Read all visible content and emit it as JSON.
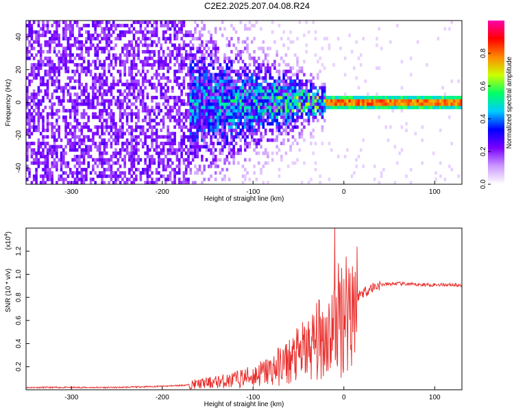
{
  "title": "C2E2.2025.207.04.08.R24",
  "chart_data": [
    {
      "type": "heatmap",
      "xlabel": "Height of straight line (km)",
      "ylabel": "Frequency (Hz)",
      "xlim": [
        -350,
        130
      ],
      "ylim": [
        -50,
        50
      ],
      "xticks": [
        -300,
        -200,
        -100,
        0,
        100
      ],
      "yticks": [
        -40,
        -20,
        0,
        20,
        40
      ],
      "colorbar": {
        "label": "Normalized spectral amplitude",
        "range": [
          0.0,
          1.0
        ],
        "ticks": [
          "0.0",
          "0.2",
          "0.4",
          "0.6",
          "0.8"
        ],
        "colors": [
          "#ffffff",
          "#cc99ff",
          "#7a00ff",
          "#0000ff",
          "#00ccff",
          "#00ff66",
          "#ccff00",
          "#ff8800",
          "#ff0000",
          "#ff00aa"
        ]
      },
      "regions": [
        {
          "x_range": [
            -350,
            -170
          ],
          "description": "broadband noise",
          "amplitude": 0.2
        },
        {
          "x_range": [
            -170,
            -20
          ],
          "description": "narrowing signal near 0 Hz",
          "amplitude": 0.5
        },
        {
          "x_range": [
            -20,
            130
          ],
          "description": "strong tone at 0 Hz",
          "amplitude": 0.95
        }
      ]
    },
    {
      "type": "line",
      "xlabel": "Height of straight line (km)",
      "ylabel": "SNR (10 * v/v)",
      "yscale_label": "(x10",
      "yscale_exp": "4",
      "xlim": [
        -350,
        130
      ],
      "ylim": [
        0,
        1.4
      ],
      "xticks": [
        -300,
        -200,
        -100,
        0,
        100
      ],
      "yticks": [
        0.2,
        0.4,
        0.6,
        0.8,
        1.0,
        1.2
      ],
      "ytick_labels": [
        "0.2",
        "0.4",
        "0.6",
        "0.8",
        "1.0",
        "1.2"
      ],
      "series": [
        {
          "color": "#e8312f",
          "x": [
            -350,
            -250,
            -200,
            -175,
            -150,
            -125,
            -100,
            -80,
            -60,
            -40,
            -25,
            -15,
            -10,
            -5,
            0,
            10,
            20,
            30,
            40,
            60,
            80,
            100,
            120,
            130
          ],
          "y": [
            0.02,
            0.02,
            0.03,
            0.04,
            0.06,
            0.08,
            0.12,
            0.17,
            0.25,
            0.35,
            0.45,
            0.5,
            0.55,
            0.63,
            0.7,
            0.78,
            0.84,
            0.88,
            0.91,
            0.92,
            0.91,
            0.91,
            0.91,
            0.9
          ],
          "spikes": [
            {
              "x": -10,
              "y": 1.4
            }
          ]
        }
      ]
    }
  ]
}
